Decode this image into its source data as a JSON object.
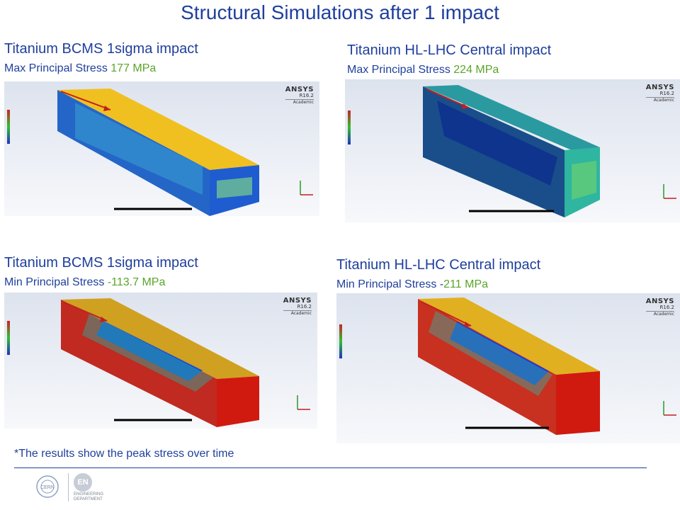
{
  "page": {
    "title": "Structural Simulations after 1 impact"
  },
  "panels": [
    {
      "heading": "Titanium BCMS 1sigma impact",
      "subtitle_prefix": "Max Principal Stress ",
      "subtitle_value": "177 MPa"
    },
    {
      "heading": "Titanium HL-LHC Central impact",
      "subtitle_prefix": "Max Principal Stress ",
      "subtitle_value": "224 MPa"
    },
    {
      "heading": "Titanium BCMS 1sigma impact",
      "subtitle_prefix": "Min Principal Stress ",
      "subtitle_value": "-113.7 MPa"
    },
    {
      "heading": "Titanium HL-LHC Central impact",
      "subtitle_prefix": "Min Principal Stress -",
      "subtitle_value": "211 MPa"
    }
  ],
  "ansys": {
    "brand": "ANSYS",
    "version": "R16.2",
    "edition": "Academic"
  },
  "footer": {
    "note": "*The results show the peak stress over time",
    "department_line1": "ENGINEERING",
    "department_line2": "DEPARTMENT",
    "en_logo": "EN",
    "cern_logo": "CERN"
  },
  "colors": {
    "title_blue": "#1f3f9c",
    "value_green": "#5aa52a"
  }
}
